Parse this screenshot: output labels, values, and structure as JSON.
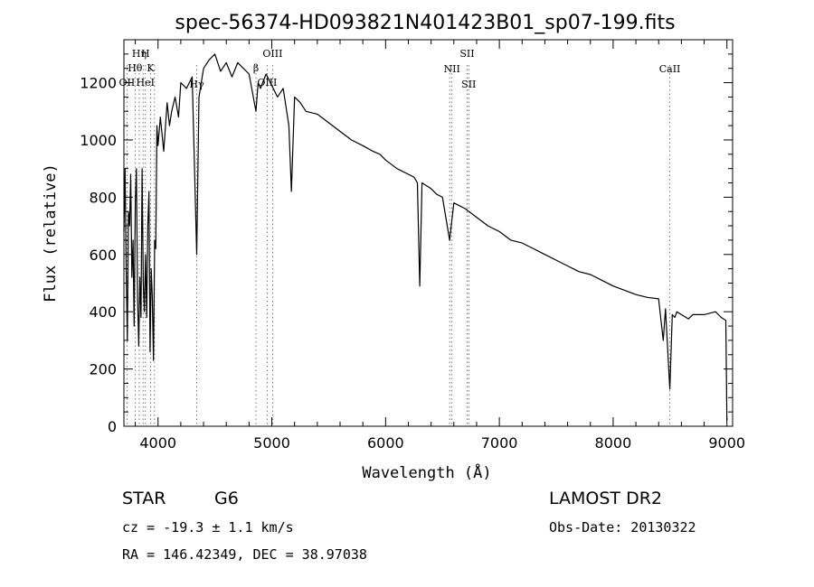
{
  "chart_data": {
    "type": "line",
    "title": "spec-56374-HD093821N401423B01_sp07-199.fits",
    "xlabel": "Wavelength (Å)",
    "ylabel": "Flux (relative)",
    "xlim": [
      3700,
      9050
    ],
    "ylim": [
      0,
      1350
    ],
    "xticks": [
      4000,
      5000,
      6000,
      7000,
      8000,
      9000
    ],
    "yticks": [
      0,
      200,
      400,
      600,
      800,
      1000,
      1200
    ],
    "grid": false,
    "series": [
      {
        "x": [
          3700,
          3710,
          3720,
          3730,
          3740,
          3750,
          3760,
          3770,
          3780,
          3790,
          3800,
          3810,
          3820,
          3830,
          3840,
          3850,
          3860,
          3870,
          3880,
          3890,
          3900,
          3910,
          3920,
          3930,
          3940,
          3950,
          3960,
          3970,
          3980,
          3990,
          4000,
          4020,
          4050,
          4080,
          4101,
          4120,
          4150,
          4180,
          4200,
          4250,
          4300,
          4340,
          4360,
          4400,
          4450,
          4500,
          4550,
          4600,
          4650,
          4700,
          4750,
          4800,
          4861,
          4880,
          4900,
          4950,
          5000,
          5050,
          5100,
          5150,
          5172,
          5200,
          5250,
          5300,
          5400,
          5500,
          5600,
          5700,
          5800,
          5890,
          5950,
          6000,
          6100,
          6200,
          6250,
          6280,
          6300,
          6320,
          6400,
          6450,
          6500,
          6563,
          6600,
          6700,
          6800,
          6900,
          7000,
          7100,
          7200,
          7300,
          7400,
          7500,
          7600,
          7700,
          7800,
          7900,
          8000,
          8100,
          8200,
          8300,
          8400,
          8440,
          8460,
          8498,
          8520,
          8542,
          8560,
          8600,
          8662,
          8700,
          8800,
          8900,
          8950,
          8990,
          9000
        ],
        "values": [
          680,
          900,
          550,
          300,
          750,
          700,
          880,
          520,
          650,
          350,
          780,
          900,
          450,
          280,
          520,
          380,
          900,
          500,
          400,
          600,
          380,
          700,
          820,
          260,
          550,
          450,
          230,
          650,
          620,
          1050,
          980,
          1080,
          960,
          1130,
          1050,
          1100,
          1150,
          1080,
          1200,
          1180,
          1220,
          600,
          1150,
          1250,
          1280,
          1300,
          1240,
          1270,
          1220,
          1270,
          1250,
          1230,
          1100,
          1200,
          1180,
          1230,
          1190,
          1150,
          1180,
          1050,
          820,
          1150,
          1130,
          1100,
          1090,
          1060,
          1030,
          1000,
          980,
          960,
          950,
          930,
          900,
          880,
          870,
          850,
          490,
          850,
          830,
          810,
          800,
          650,
          780,
          760,
          730,
          700,
          680,
          650,
          640,
          620,
          600,
          580,
          560,
          540,
          530,
          510,
          490,
          475,
          460,
          450,
          445,
          300,
          410,
          130,
          390,
          380,
          400,
          390,
          375,
          390,
          390,
          400,
          380,
          370,
          20
        ]
      }
    ],
    "line_labels": [
      {
        "name": "Hη",
        "x": 3835,
        "value": "Hη"
      },
      {
        "name": "H",
        "x": 3889,
        "value": "H"
      },
      {
        "name": "Hθ",
        "x": 3798,
        "value": "Hθ"
      },
      {
        "name": "K",
        "x": 3934,
        "value": "K"
      },
      {
        "name": "OII",
        "x": 3727,
        "value": "OII"
      },
      {
        "name": "HeI",
        "x": 3889,
        "value": "HeI"
      },
      {
        "name": "Hγ",
        "x": 4340,
        "value": "Hγ"
      },
      {
        "name": "OIII",
        "x": 5007,
        "value": "OIII"
      },
      {
        "name": "Hβ",
        "x": 4861,
        "value": "β"
      },
      {
        "name": "OIII_b",
        "x": 4959,
        "value": "OIII"
      },
      {
        "name": "NII",
        "x": 6583,
        "value": "NII"
      },
      {
        "name": "SII_top",
        "x": 6717,
        "value": "SII"
      },
      {
        "name": "SII_bottom",
        "x": 6731,
        "value": "SII"
      },
      {
        "name": "CaII",
        "x": 8498,
        "value": "CaII"
      }
    ],
    "line_markers": [
      3727,
      3798,
      3835,
      3869,
      3889,
      3934,
      3969,
      4340,
      4861,
      4959,
      5007,
      6563,
      6583,
      6717,
      6731,
      8498
    ]
  },
  "info": {
    "object_class": "STAR",
    "subclass": "G6",
    "survey": "LAMOST DR2",
    "cz": "cz = -19.3 ± 1.1 km/s",
    "obs_date": "Obs-Date: 20130322",
    "coords": "RA = 146.42349, DEC =  38.97038"
  }
}
